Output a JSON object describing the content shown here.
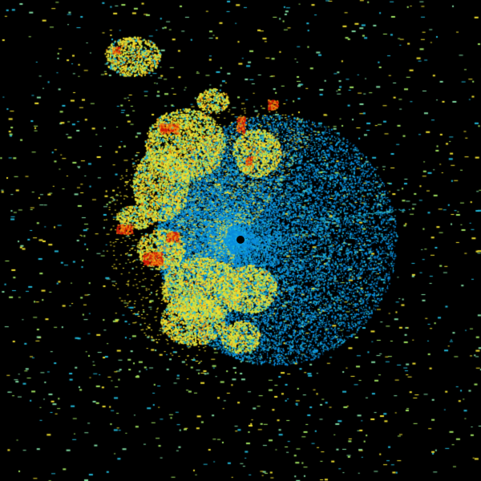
{
  "radar": {
    "background": "#000000",
    "site_marker_color": "#000000",
    "palette": {
      "light": "#7fd8a0",
      "blue": "#0a8fe0",
      "cyan": "#22b8d8",
      "green": "#9ee060",
      "yellow": "#f0e030",
      "orange": "#f08a10",
      "red": "#d01808"
    }
  }
}
